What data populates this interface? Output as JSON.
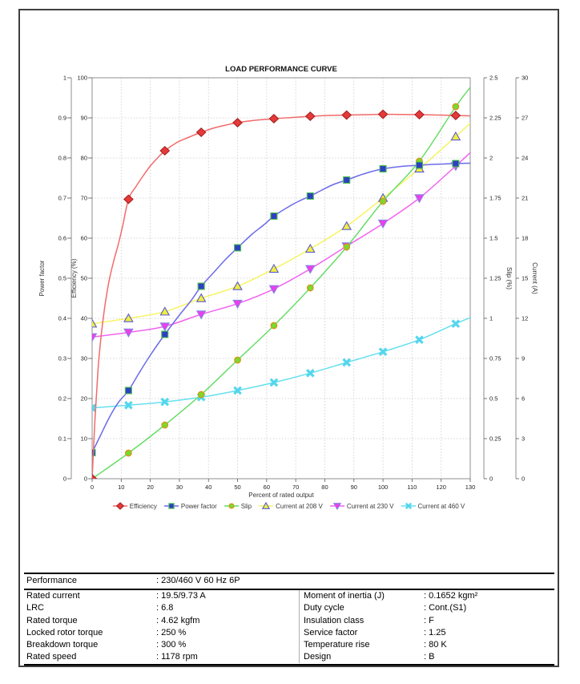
{
  "chart_data": {
    "type": "line",
    "title": "LOAD PERFORMANCE CURVE",
    "xlabel": "Percent of rated output",
    "x_range": [
      0,
      130
    ],
    "x_tick_step": 10,
    "grid": true,
    "legend_position": "bottom",
    "axes": {
      "power_factor": {
        "label": "Power factor",
        "range": [
          0,
          1
        ],
        "tick_step": 0.1,
        "side": "left"
      },
      "efficiency": {
        "label": "Efficiency (%)",
        "range": [
          0,
          100
        ],
        "tick_step": 10,
        "side": "left"
      },
      "slip": {
        "label": "Slip (%)",
        "range": [
          0,
          2.5
        ],
        "tick_step": 0.25,
        "side": "right"
      },
      "current": {
        "label": "Current (A)",
        "range": [
          0,
          30
        ],
        "tick_step": 3,
        "side": "right"
      }
    },
    "x_points": [
      0,
      12.5,
      25,
      37.5,
      50,
      62.5,
      75,
      87.5,
      100,
      112.5,
      125
    ],
    "series": [
      {
        "name": "Efficiency",
        "axis": "efficiency",
        "marker": "diamond",
        "line_color": "#f26a6a",
        "marker_fill": "#e53a3a",
        "marker_stroke": "#a82222",
        "values": [
          0,
          69.7,
          81.8,
          86.4,
          88.8,
          89.8,
          90.4,
          90.7,
          90.9,
          90.8,
          90.6
        ],
        "curve": [
          [
            0,
            0
          ],
          [
            1,
            15
          ],
          [
            2,
            27
          ],
          [
            3,
            35
          ],
          [
            4,
            41
          ],
          [
            5,
            46
          ],
          [
            6,
            50
          ],
          [
            7.5,
            54.5
          ],
          [
            9,
            58.5
          ],
          [
            10.5,
            63
          ],
          [
            12.5,
            69.7
          ],
          [
            15,
            72.8
          ],
          [
            17.5,
            75.5
          ],
          [
            20,
            78
          ],
          [
            22.5,
            80
          ],
          [
            25,
            81.8
          ],
          [
            29,
            83.8
          ],
          [
            33,
            85.1
          ],
          [
            37.5,
            86.4
          ],
          [
            42,
            87.5
          ],
          [
            46,
            88.2
          ],
          [
            50,
            88.8
          ],
          [
            56,
            89.4
          ],
          [
            62.5,
            89.8
          ],
          [
            69,
            90.1
          ],
          [
            75,
            90.4
          ],
          [
            81,
            90.6
          ],
          [
            87.5,
            90.7
          ],
          [
            94,
            90.8
          ],
          [
            100,
            90.9
          ],
          [
            106,
            90.85
          ],
          [
            112.5,
            90.8
          ],
          [
            119,
            90.7
          ],
          [
            125,
            90.6
          ],
          [
            130,
            90.5
          ]
        ]
      },
      {
        "name": "Power factor",
        "axis": "power_factor",
        "marker": "square",
        "line_color": "#6b6bea",
        "marker_fill": "#2e3fc2",
        "marker_stroke": "#4fc24f",
        "values": [
          0.065,
          0.22,
          0.36,
          0.48,
          0.576,
          0.655,
          0.705,
          0.745,
          0.773,
          0.782,
          0.786
        ],
        "curve": [
          [
            0,
            0.065
          ],
          [
            3,
            0.11
          ],
          [
            6,
            0.154
          ],
          [
            9,
            0.19
          ],
          [
            12.5,
            0.22
          ],
          [
            16,
            0.262
          ],
          [
            20,
            0.308
          ],
          [
            25,
            0.36
          ],
          [
            30,
            0.408
          ],
          [
            34,
            0.444
          ],
          [
            37.5,
            0.48
          ],
          [
            42,
            0.516
          ],
          [
            46,
            0.548
          ],
          [
            50,
            0.576
          ],
          [
            55,
            0.61
          ],
          [
            59,
            0.633
          ],
          [
            62.5,
            0.655
          ],
          [
            67,
            0.676
          ],
          [
            71,
            0.692
          ],
          [
            75,
            0.705
          ],
          [
            79,
            0.72
          ],
          [
            83,
            0.734
          ],
          [
            87.5,
            0.745
          ],
          [
            92,
            0.757
          ],
          [
            96,
            0.766
          ],
          [
            100,
            0.773
          ],
          [
            104,
            0.777
          ],
          [
            108,
            0.78
          ],
          [
            112.5,
            0.782
          ],
          [
            117,
            0.784
          ],
          [
            121,
            0.785
          ],
          [
            125,
            0.786
          ],
          [
            130,
            0.787
          ]
        ]
      },
      {
        "name": "Slip",
        "axis": "slip",
        "marker": "circle",
        "line_color": "#67dd67",
        "marker_fill": "#79d92e",
        "marker_stroke": "#df8d13",
        "values": [
          0,
          0.16,
          0.335,
          0.525,
          0.74,
          0.955,
          1.19,
          1.445,
          1.73,
          1.98,
          2.32
        ],
        "curve": [
          [
            0,
            0
          ],
          [
            12.5,
            0.16
          ],
          [
            25,
            0.335
          ],
          [
            37.5,
            0.525
          ],
          [
            50,
            0.74
          ],
          [
            62.5,
            0.955
          ],
          [
            75,
            1.19
          ],
          [
            87.5,
            1.445
          ],
          [
            100,
            1.73
          ],
          [
            112.5,
            1.98
          ],
          [
            125,
            2.32
          ],
          [
            130,
            2.44
          ]
        ]
      },
      {
        "name": "Current at 208 V",
        "axis": "current",
        "marker": "triangle-up",
        "line_color": "#f7f464",
        "marker_fill": "#f2ee3f",
        "marker_stroke": "#5a5ad2",
        "values": [
          11.6,
          12.0,
          12.5,
          13.5,
          14.4,
          15.7,
          17.2,
          18.9,
          21.0,
          23.2,
          25.6
        ],
        "curve": [
          [
            0,
            11.6
          ],
          [
            12.5,
            12.0
          ],
          [
            25,
            12.5
          ],
          [
            37.5,
            13.5
          ],
          [
            50,
            14.4
          ],
          [
            62.5,
            15.7
          ],
          [
            75,
            17.2
          ],
          [
            87.5,
            18.9
          ],
          [
            100,
            21.0
          ],
          [
            112.5,
            23.2
          ],
          [
            125,
            25.6
          ],
          [
            130,
            26.6
          ]
        ]
      },
      {
        "name": "Current at 230 V",
        "axis": "current",
        "marker": "triangle-down",
        "line_color": "#f163f1",
        "marker_fill": "#ee3dee",
        "marker_stroke": "#8585e2",
        "values": [
          10.6,
          10.95,
          11.4,
          12.3,
          13.1,
          14.2,
          15.7,
          17.4,
          19.1,
          21.0,
          23.4
        ],
        "curve": [
          [
            0,
            10.6
          ],
          [
            12.5,
            10.95
          ],
          [
            25,
            11.4
          ],
          [
            37.5,
            12.3
          ],
          [
            50,
            13.1
          ],
          [
            62.5,
            14.2
          ],
          [
            75,
            15.7
          ],
          [
            87.5,
            17.4
          ],
          [
            100,
            19.1
          ],
          [
            112.5,
            21.0
          ],
          [
            125,
            23.4
          ],
          [
            130,
            24.4
          ]
        ]
      },
      {
        "name": "Current at 460 V",
        "axis": "current",
        "marker": "x",
        "line_color": "#67dff0",
        "marker_fill": "#54d6ec",
        "marker_stroke": "#54d6ec",
        "values": [
          5.3,
          5.5,
          5.75,
          6.1,
          6.6,
          7.2,
          7.9,
          8.7,
          9.5,
          10.4,
          11.6
        ],
        "curve": [
          [
            0,
            5.3
          ],
          [
            12.5,
            5.5
          ],
          [
            25,
            5.75
          ],
          [
            37.5,
            6.1
          ],
          [
            50,
            6.6
          ],
          [
            62.5,
            7.2
          ],
          [
            75,
            7.9
          ],
          [
            87.5,
            8.7
          ],
          [
            100,
            9.5
          ],
          [
            112.5,
            10.4
          ],
          [
            125,
            11.6
          ],
          [
            130,
            12.05
          ]
        ]
      }
    ]
  },
  "table": {
    "performance": {
      "label": "Performance",
      "value": ": 230/460 V 60 Hz 6P"
    },
    "left": [
      {
        "label": "Rated current",
        "value": ": 19.5/9.73 A"
      },
      {
        "label": "LRC",
        "value": ": 6.8"
      },
      {
        "label": "Rated torque",
        "value": ": 4.62 kgfm"
      },
      {
        "label": "Locked rotor torque",
        "value": ": 250 %"
      },
      {
        "label": "Breakdown torque",
        "value": ": 300 %"
      },
      {
        "label": "Rated speed",
        "value": ": 1178 rpm"
      }
    ],
    "right": [
      {
        "label": "Moment of inertia (J)",
        "value": ": 0.1652 kgm²"
      },
      {
        "label": "Duty cycle",
        "value": ": Cont.(S1)"
      },
      {
        "label": "Insulation class",
        "value": ": F"
      },
      {
        "label": "Service factor",
        "value": ": 1.25"
      },
      {
        "label": "Temperature rise",
        "value": ": 80 K"
      },
      {
        "label": "Design",
        "value": ": B"
      }
    ]
  }
}
